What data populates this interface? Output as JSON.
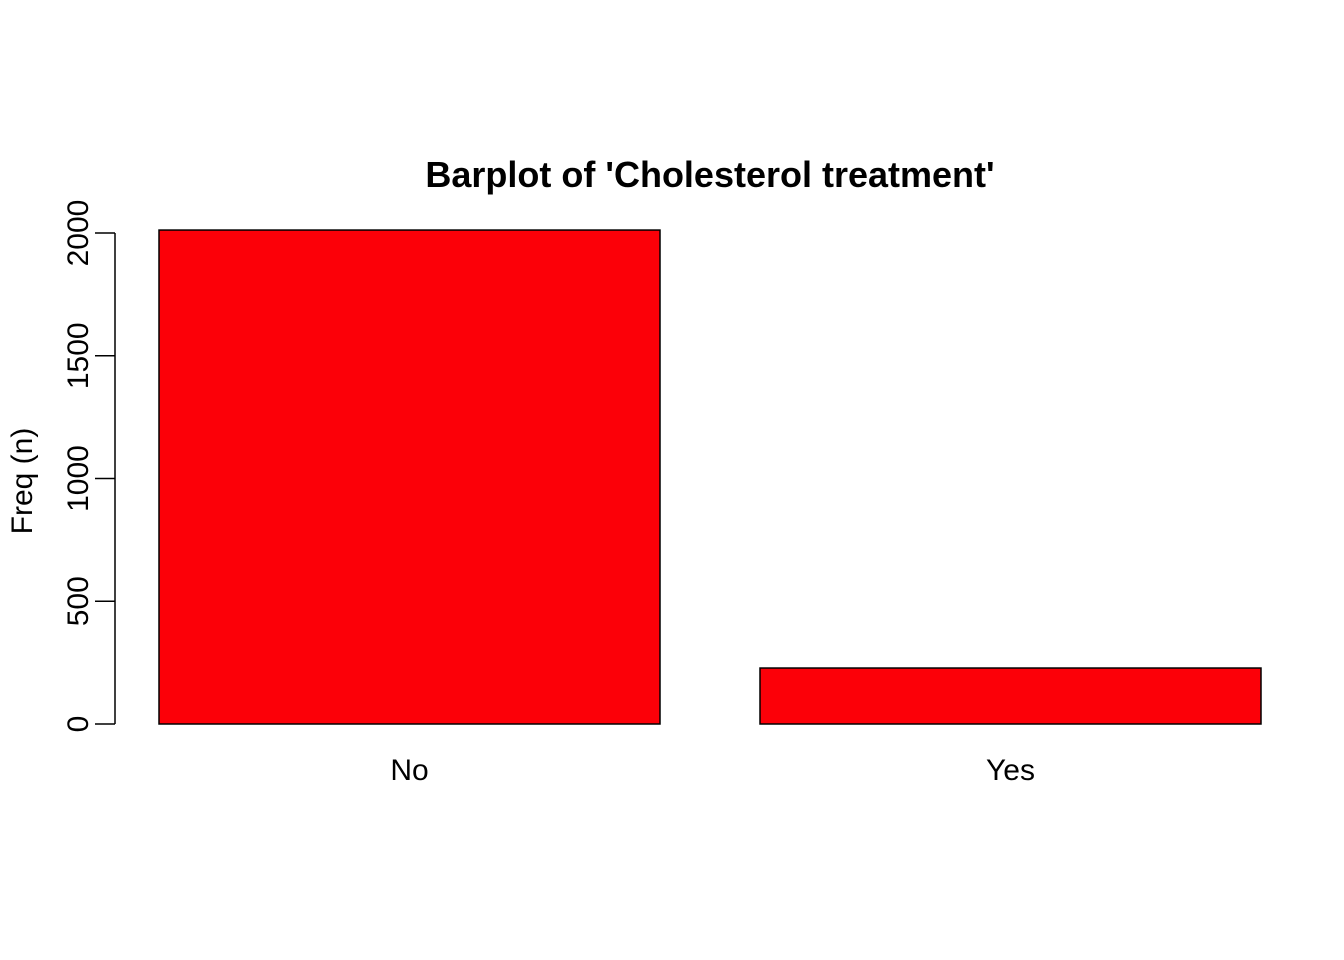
{
  "chart_data": {
    "type": "bar",
    "title": "Barplot of 'Cholesterol treatment'",
    "xlabel": "",
    "ylabel": "Freq (n)",
    "categories": [
      "No",
      "Yes"
    ],
    "values": [
      2012,
      228
    ],
    "ylim": [
      0,
      2000
    ],
    "yticks": [
      0,
      500,
      1000,
      1500,
      2000
    ],
    "ytick_labels": [
      "0",
      "500",
      "1000",
      "1500",
      "2000"
    ],
    "grid": false,
    "legend": "none",
    "bar_color": "#fc0008",
    "border_color": "#000000"
  }
}
